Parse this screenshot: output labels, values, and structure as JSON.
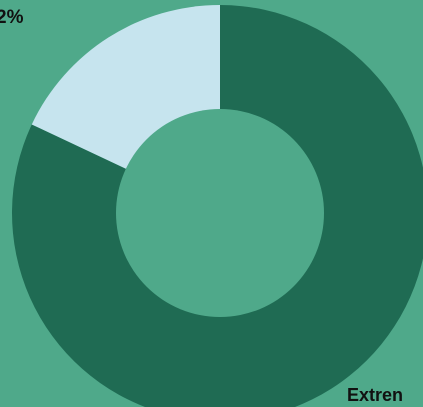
{
  "chart_data": {
    "type": "pie",
    "style": "donut",
    "slices": [
      {
        "label": "Extrem",
        "value": 82,
        "color": "#1f6b53"
      },
      {
        "label": "",
        "value": 18,
        "color": "#c6e4ee"
      }
    ],
    "visible_labels": {
      "top": "2%",
      "bottom": "Extren"
    }
  },
  "colors": {
    "background": "#4fa98a",
    "hole": "#4fa98a"
  }
}
